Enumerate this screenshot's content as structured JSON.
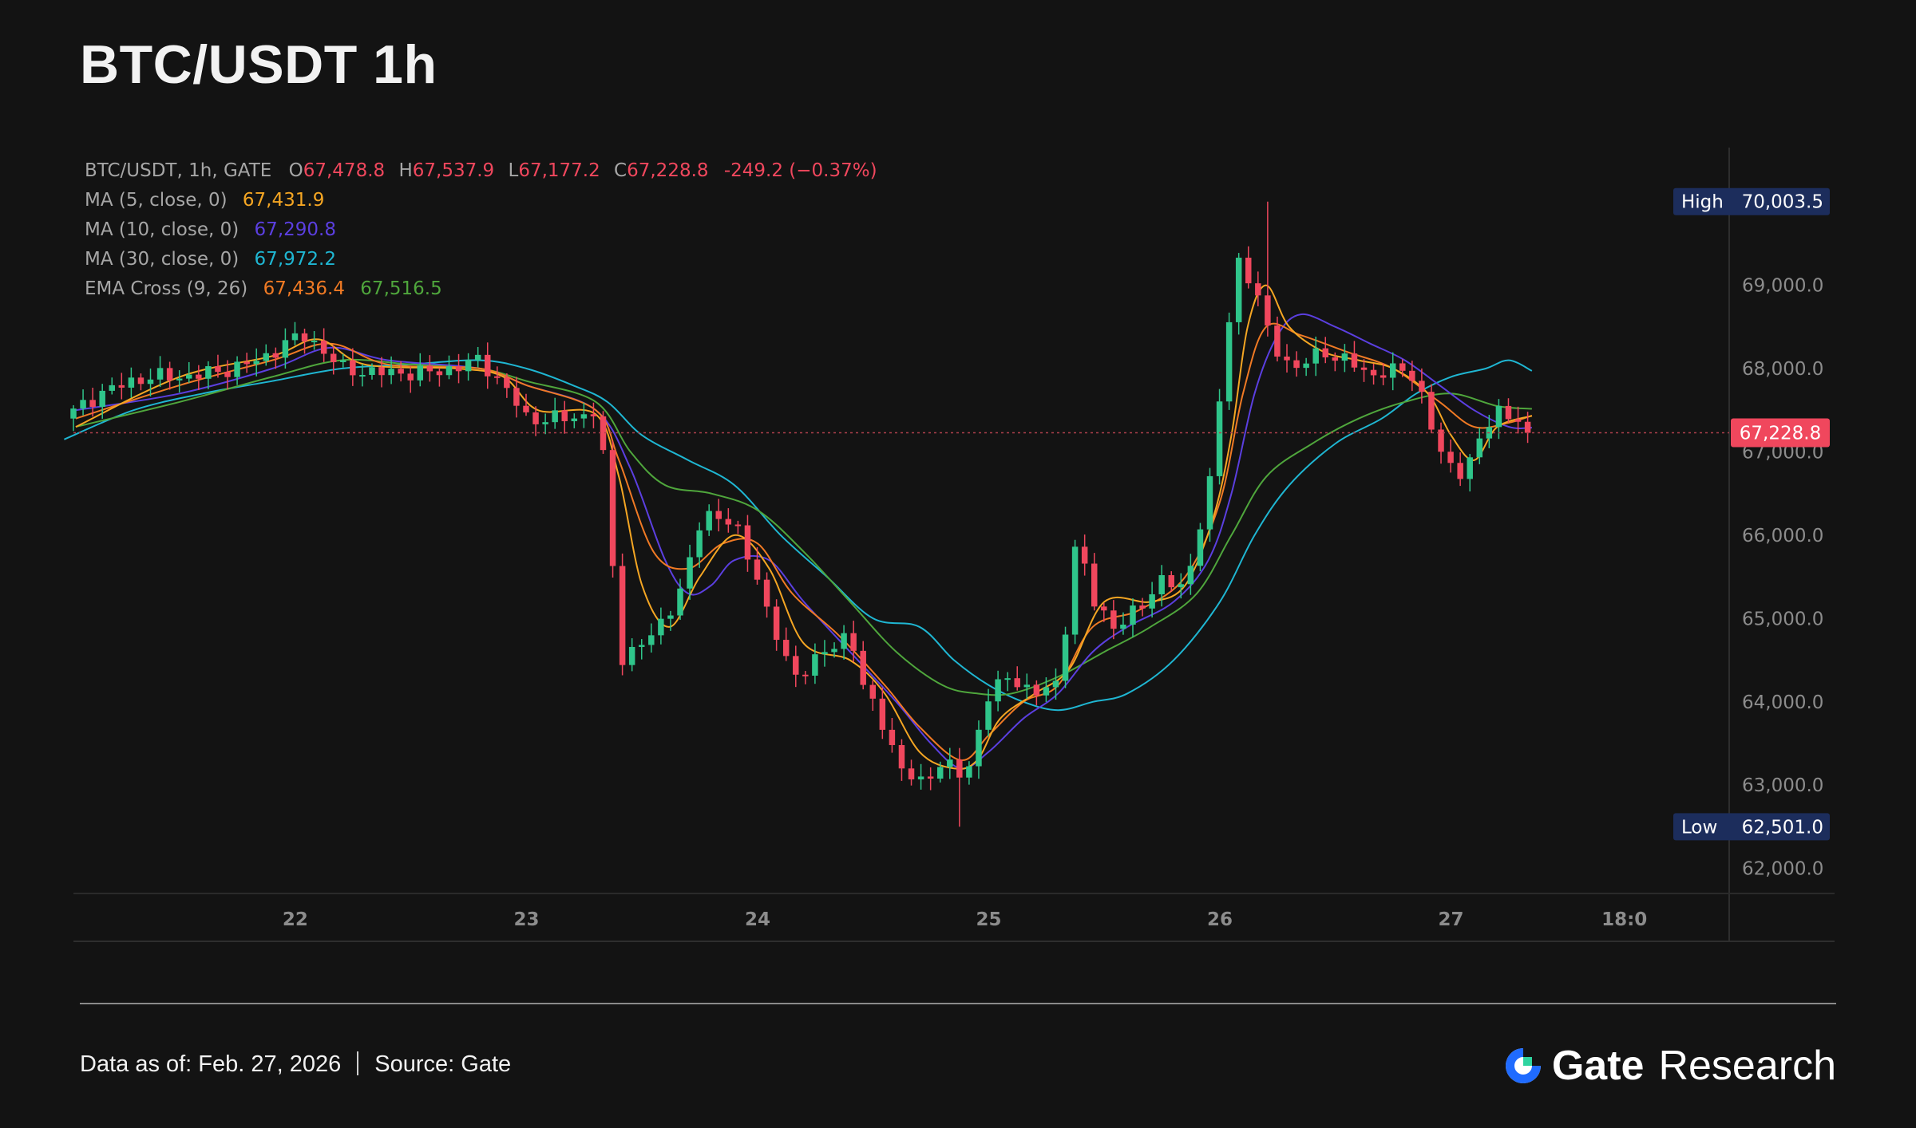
{
  "header": {
    "title": "BTC/USDT 1h"
  },
  "legend": {
    "symbol_label": "BTC/USDT, 1h, GATE",
    "o_prefix": "O",
    "o_value": "67,478.8",
    "h_prefix": "H",
    "h_value": "67,537.9",
    "l_prefix": "L",
    "l_value": "67,177.2",
    "c_prefix": "C",
    "c_value": "67,228.8",
    "change": "-249.2 (−0.37%)",
    "ma5_label": "MA (5, close, 0)",
    "ma5_value": "67,431.9",
    "ma10_label": "MA (10, close, 0)",
    "ma10_value": "67,290.8",
    "ma30_label": "MA (30, close, 0)",
    "ma30_value": "67,972.2",
    "ema_label": "EMA Cross (9, 26)",
    "ema9_value": "67,436.4",
    "ema26_value": "67,516.5"
  },
  "footer": {
    "data_as_of": "Data as of: Feb. 27, 2026",
    "source": "Source:  Gate",
    "brand_name": "Gate",
    "brand_sub": "Research"
  },
  "colors": {
    "background": "#131313",
    "up": "#2fc58a",
    "down": "#f0475d",
    "ma5": "#f5a623",
    "ma10": "#5b3fe0",
    "ma30": "#1fb6d2",
    "ema9": "#f07a24",
    "ema26": "#4fa63c",
    "badge": "#1c2d5c",
    "brand_blue": "#1f6bff"
  },
  "chart_data": {
    "type": "candlestick",
    "symbol": "BTC/USDT",
    "interval": "1h",
    "exchange": "GATE",
    "ylim": [
      61700,
      70700
    ],
    "y_ticks": [
      62000,
      63000,
      64000,
      65000,
      66000,
      67000,
      68000,
      69000
    ],
    "y_tick_labels": [
      "62,000.0",
      "63,000.0",
      "64,000.0",
      "65,000.0",
      "66,000.0",
      "67,000.0",
      "68,000.0",
      "69,000.0"
    ],
    "x_ticks": [
      {
        "label": "22",
        "day": 22
      },
      {
        "label": "23",
        "day": 23
      },
      {
        "label": "24",
        "day": 24
      },
      {
        "label": "25",
        "day": 25
      },
      {
        "label": "26",
        "day": 26
      },
      {
        "label": "27",
        "day": 27
      },
      {
        "label": "18:0",
        "day": 27.75
      }
    ],
    "x_start_day": 21.04,
    "x_end_day": 28.2,
    "last_candle_day": 27.35,
    "high_marker": {
      "label": "High",
      "value": 70003.5,
      "text": "70,003.5"
    },
    "low_marker": {
      "label": "Low",
      "value": 62501.0,
      "text": "62,501.0"
    },
    "last_price": {
      "value": 67228.8,
      "text": "67,228.8"
    },
    "close_anchors": [
      [
        21.0,
        67400
      ],
      [
        21.15,
        67700
      ],
      [
        21.35,
        67900
      ],
      [
        21.5,
        67900
      ],
      [
        21.65,
        67950
      ],
      [
        21.85,
        68100
      ],
      [
        21.95,
        68300
      ],
      [
        22.05,
        68400
      ],
      [
        22.2,
        68000
      ],
      [
        22.35,
        67950
      ],
      [
        22.6,
        67950
      ],
      [
        22.8,
        68100
      ],
      [
        22.9,
        67800
      ],
      [
        23.0,
        67400
      ],
      [
        23.2,
        67400
      ],
      [
        23.3,
        67500
      ],
      [
        23.35,
        66600
      ],
      [
        23.4,
        64500
      ],
      [
        23.55,
        64800
      ],
      [
        23.7,
        65500
      ],
      [
        23.72,
        66000
      ],
      [
        23.8,
        66300
      ],
      [
        23.9,
        66100
      ],
      [
        24.0,
        65500
      ],
      [
        24.05,
        65000
      ],
      [
        24.15,
        64300
      ],
      [
        24.25,
        64500
      ],
      [
        24.35,
        64700
      ],
      [
        24.4,
        64900
      ],
      [
        24.45,
        64200
      ],
      [
        24.55,
        63700
      ],
      [
        24.62,
        63200
      ],
      [
        24.7,
        63000
      ],
      [
        24.8,
        63300
      ],
      [
        24.9,
        63050
      ],
      [
        24.95,
        63600
      ],
      [
        25.0,
        64100
      ],
      [
        25.1,
        64300
      ],
      [
        25.2,
        64100
      ],
      [
        25.3,
        64200
      ],
      [
        25.38,
        66000
      ],
      [
        25.45,
        65200
      ],
      [
        25.55,
        64900
      ],
      [
        25.65,
        65100
      ],
      [
        25.75,
        65500
      ],
      [
        25.85,
        65300
      ],
      [
        25.9,
        66000
      ],
      [
        25.97,
        66800
      ],
      [
        26.02,
        68200
      ],
      [
        26.08,
        69300
      ],
      [
        26.15,
        69000
      ],
      [
        26.22,
        68300
      ],
      [
        26.32,
        68000
      ],
      [
        26.45,
        68200
      ],
      [
        26.55,
        68100
      ],
      [
        26.65,
        67900
      ],
      [
        26.72,
        68000
      ],
      [
        26.85,
        67900
      ],
      [
        26.95,
        67000
      ],
      [
        27.02,
        66700
      ],
      [
        27.1,
        67000
      ],
      [
        27.2,
        67500
      ],
      [
        27.3,
        67400
      ],
      [
        27.35,
        67228.8
      ]
    ],
    "ma5_anchors": [
      [
        21.05,
        67300
      ],
      [
        21.5,
        67900
      ],
      [
        21.9,
        68150
      ],
      [
        22.1,
        68350
      ],
      [
        22.3,
        68050
      ],
      [
        22.7,
        68000
      ],
      [
        22.9,
        67900
      ],
      [
        23.05,
        67500
      ],
      [
        23.3,
        67450
      ],
      [
        23.4,
        66700
      ],
      [
        23.5,
        65400
      ],
      [
        23.62,
        64900
      ],
      [
        23.75,
        65500
      ],
      [
        23.9,
        66000
      ],
      [
        24.05,
        65600
      ],
      [
        24.2,
        64700
      ],
      [
        24.4,
        64500
      ],
      [
        24.55,
        64100
      ],
      [
        24.7,
        63400
      ],
      [
        24.85,
        63200
      ],
      [
        24.95,
        63300
      ],
      [
        25.05,
        63800
      ],
      [
        25.2,
        64100
      ],
      [
        25.35,
        64400
      ],
      [
        25.5,
        65200
      ],
      [
        25.7,
        65200
      ],
      [
        25.85,
        65400
      ],
      [
        25.97,
        66200
      ],
      [
        26.05,
        67200
      ],
      [
        26.12,
        68500
      ],
      [
        26.2,
        69000
      ],
      [
        26.3,
        68500
      ],
      [
        26.45,
        68200
      ],
      [
        26.6,
        68100
      ],
      [
        26.75,
        68000
      ],
      [
        26.9,
        67700
      ],
      [
        27.0,
        67200
      ],
      [
        27.1,
        66900
      ],
      [
        27.2,
        67300
      ],
      [
        27.35,
        67431.9
      ]
    ],
    "ma10_anchors": [
      [
        21.05,
        67500
      ],
      [
        21.5,
        67700
      ],
      [
        21.9,
        68000
      ],
      [
        22.15,
        68250
      ],
      [
        22.4,
        68100
      ],
      [
        22.8,
        68000
      ],
      [
        23.0,
        67800
      ],
      [
        23.3,
        67500
      ],
      [
        23.45,
        66800
      ],
      [
        23.6,
        65700
      ],
      [
        23.7,
        65300
      ],
      [
        23.8,
        65400
      ],
      [
        23.9,
        65700
      ],
      [
        24.05,
        65700
      ],
      [
        24.2,
        65200
      ],
      [
        24.4,
        64600
      ],
      [
        24.6,
        64000
      ],
      [
        24.75,
        63500
      ],
      [
        24.88,
        63200
      ],
      [
        25.0,
        63400
      ],
      [
        25.15,
        63800
      ],
      [
        25.3,
        64100
      ],
      [
        25.45,
        64600
      ],
      [
        25.6,
        64900
      ],
      [
        25.8,
        65200
      ],
      [
        25.95,
        65700
      ],
      [
        26.05,
        66500
      ],
      [
        26.15,
        67700
      ],
      [
        26.25,
        68400
      ],
      [
        26.35,
        68650
      ],
      [
        26.5,
        68500
      ],
      [
        26.65,
        68300
      ],
      [
        26.8,
        68100
      ],
      [
        26.95,
        67800
      ],
      [
        27.1,
        67500
      ],
      [
        27.25,
        67300
      ],
      [
        27.35,
        67290.8
      ]
    ],
    "ma30_anchors": [
      [
        21.0,
        67150
      ],
      [
        21.3,
        67500
      ],
      [
        21.6,
        67700
      ],
      [
        21.9,
        67850
      ],
      [
        22.2,
        68000
      ],
      [
        22.5,
        68050
      ],
      [
        22.8,
        68100
      ],
      [
        23.0,
        68000
      ],
      [
        23.2,
        67800
      ],
      [
        23.35,
        67600
      ],
      [
        23.5,
        67200
      ],
      [
        23.7,
        66900
      ],
      [
        23.9,
        66600
      ],
      [
        24.1,
        66000
      ],
      [
        24.3,
        65500
      ],
      [
        24.5,
        65000
      ],
      [
        24.7,
        64900
      ],
      [
        24.85,
        64500
      ],
      [
        25.0,
        64200
      ],
      [
        25.15,
        64000
      ],
      [
        25.3,
        63900
      ],
      [
        25.45,
        64000
      ],
      [
        25.6,
        64100
      ],
      [
        25.8,
        64500
      ],
      [
        26.0,
        65200
      ],
      [
        26.15,
        66000
      ],
      [
        26.3,
        66600
      ],
      [
        26.5,
        67100
      ],
      [
        26.7,
        67400
      ],
      [
        26.85,
        67700
      ],
      [
        27.0,
        67900
      ],
      [
        27.15,
        68000
      ],
      [
        27.25,
        68100
      ],
      [
        27.35,
        67972.2
      ]
    ],
    "ema9_anchors": [
      [
        21.05,
        67400
      ],
      [
        21.5,
        67800
      ],
      [
        21.9,
        68100
      ],
      [
        22.15,
        68300
      ],
      [
        22.4,
        68050
      ],
      [
        22.8,
        68000
      ],
      [
        23.0,
        67800
      ],
      [
        23.3,
        67500
      ],
      [
        23.4,
        66900
      ],
      [
        23.55,
        65800
      ],
      [
        23.7,
        65600
      ],
      [
        23.85,
        65900
      ],
      [
        24.0,
        65900
      ],
      [
        24.15,
        65300
      ],
      [
        24.35,
        64800
      ],
      [
        24.55,
        64200
      ],
      [
        24.7,
        63700
      ],
      [
        24.88,
        63300
      ],
      [
        25.0,
        63600
      ],
      [
        25.15,
        64000
      ],
      [
        25.3,
        64200
      ],
      [
        25.45,
        64900
      ],
      [
        25.65,
        65100
      ],
      [
        25.85,
        65500
      ],
      [
        26.0,
        66400
      ],
      [
        26.1,
        67700
      ],
      [
        26.2,
        68500
      ],
      [
        26.35,
        68400
      ],
      [
        26.55,
        68200
      ],
      [
        26.75,
        68000
      ],
      [
        26.95,
        67600
      ],
      [
        27.1,
        67300
      ],
      [
        27.25,
        67350
      ],
      [
        27.35,
        67436.4
      ]
    ],
    "ema26_anchors": [
      [
        21.05,
        67300
      ],
      [
        21.5,
        67600
      ],
      [
        21.9,
        67900
      ],
      [
        22.2,
        68100
      ],
      [
        22.5,
        68050
      ],
      [
        22.8,
        68000
      ],
      [
        23.0,
        67850
      ],
      [
        23.3,
        67600
      ],
      [
        23.45,
        67000
      ],
      [
        23.6,
        66600
      ],
      [
        23.8,
        66500
      ],
      [
        24.0,
        66300
      ],
      [
        24.2,
        65800
      ],
      [
        24.4,
        65200
      ],
      [
        24.6,
        64600
      ],
      [
        24.8,
        64200
      ],
      [
        24.95,
        64100
      ],
      [
        25.1,
        64100
      ],
      [
        25.3,
        64300
      ],
      [
        25.5,
        64600
      ],
      [
        25.7,
        64900
      ],
      [
        25.9,
        65300
      ],
      [
        26.05,
        66000
      ],
      [
        26.2,
        66700
      ],
      [
        26.4,
        67100
      ],
      [
        26.6,
        67400
      ],
      [
        26.8,
        67600
      ],
      [
        27.0,
        67700
      ],
      [
        27.2,
        67550
      ],
      [
        27.35,
        67516.5
      ]
    ]
  }
}
